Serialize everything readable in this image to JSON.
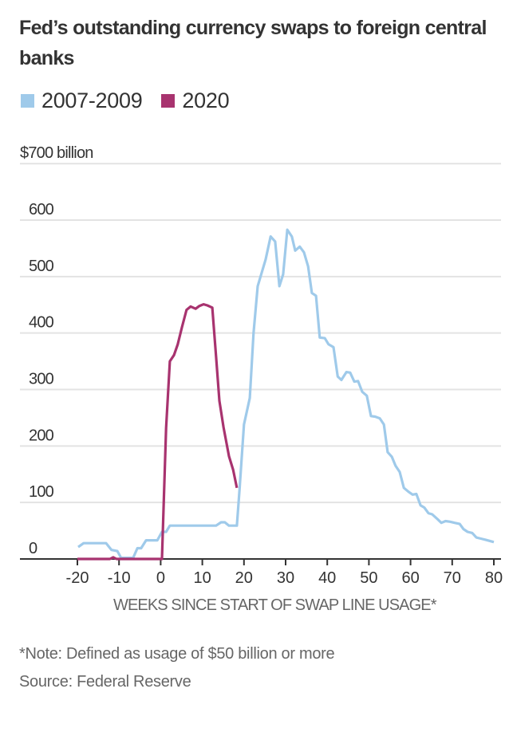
{
  "chart_data": {
    "type": "line",
    "title": "Fed’s outstanding currency swaps to foreign central banks",
    "ylabel": "$700 billion",
    "xlabel": "WEEKS SINCE START OF SWAP LINE USAGE*",
    "xlim": [
      -20,
      80
    ],
    "ylim": [
      0,
      700
    ],
    "xticks": [
      -20,
      -10,
      0,
      10,
      20,
      30,
      40,
      50,
      60,
      70,
      80
    ],
    "yticks": [
      0,
      100,
      200,
      300,
      400,
      500,
      600,
      700
    ],
    "ytick_labels": [
      "0",
      "100",
      "200",
      "300",
      "400",
      "500",
      "600",
      "$700 billion"
    ],
    "grid": true,
    "legend_position": "top-left",
    "series": [
      {
        "name": "2007-2009",
        "color": "#9fcaea",
        "points": [
          [
            -19.8,
            21
          ],
          [
            -18.5,
            28
          ],
          [
            -13.1,
            28
          ],
          [
            -11.8,
            16
          ],
          [
            -10.4,
            14
          ],
          [
            -9.5,
            2
          ],
          [
            -6.6,
            2
          ],
          [
            -5.6,
            19
          ],
          [
            -4.7,
            19
          ],
          [
            -3.5,
            33
          ],
          [
            -0.8,
            33
          ],
          [
            0.3,
            48
          ],
          [
            1.3,
            48
          ],
          [
            2.2,
            59
          ],
          [
            13.3,
            59
          ],
          [
            14.5,
            65
          ],
          [
            15.4,
            65
          ],
          [
            16.4,
            59
          ],
          [
            18.3,
            59
          ],
          [
            18.9,
            120
          ],
          [
            20,
            238
          ],
          [
            21.4,
            285
          ],
          [
            22.3,
            400
          ],
          [
            23.3,
            483
          ],
          [
            25.2,
            530
          ],
          [
            26.4,
            571
          ],
          [
            27.5,
            562
          ],
          [
            28.5,
            483
          ],
          [
            29.4,
            504
          ],
          [
            30.4,
            583
          ],
          [
            31.5,
            571
          ],
          [
            32.3,
            546
          ],
          [
            33.4,
            553
          ],
          [
            34.4,
            543
          ],
          [
            35.4,
            518
          ],
          [
            36.3,
            471
          ],
          [
            37.3,
            466
          ],
          [
            38.2,
            392
          ],
          [
            39.4,
            391
          ],
          [
            40.3,
            380
          ],
          [
            41.5,
            375
          ],
          [
            42.5,
            323
          ],
          [
            43.4,
            317
          ],
          [
            44.6,
            331
          ],
          [
            45.5,
            330
          ],
          [
            46.5,
            314
          ],
          [
            47.4,
            315
          ],
          [
            48.4,
            296
          ],
          [
            49.5,
            289
          ],
          [
            50.5,
            253
          ],
          [
            51.5,
            252
          ],
          [
            52.6,
            249
          ],
          [
            53.6,
            238
          ],
          [
            54.5,
            189
          ],
          [
            55.5,
            181
          ],
          [
            56.4,
            165
          ],
          [
            57.4,
            154
          ],
          [
            58.4,
            126
          ],
          [
            59.5,
            119
          ],
          [
            60.5,
            114
          ],
          [
            61.4,
            115
          ],
          [
            62.4,
            95
          ],
          [
            63.3,
            91
          ],
          [
            64.3,
            81
          ],
          [
            65.2,
            79
          ],
          [
            66.4,
            71
          ],
          [
            67.4,
            64
          ],
          [
            68.4,
            67
          ],
          [
            69.5,
            66
          ],
          [
            70.6,
            64
          ],
          [
            71.8,
            62
          ],
          [
            72.7,
            53
          ],
          [
            73.7,
            48
          ],
          [
            74.8,
            46
          ],
          [
            75.8,
            38
          ],
          [
            76.9,
            36
          ],
          [
            78,
            34
          ],
          [
            80,
            30
          ]
        ]
      },
      {
        "name": "2020",
        "color": "#a8336f",
        "points": [
          [
            -20,
            0
          ],
          [
            -12.2,
            0
          ],
          [
            -11.4,
            3
          ],
          [
            -10.6,
            0
          ],
          [
            0.3,
            0
          ],
          [
            1.3,
            232
          ],
          [
            2.2,
            350
          ],
          [
            3.2,
            361
          ],
          [
            4.1,
            380
          ],
          [
            5.1,
            410
          ],
          [
            6.2,
            441
          ],
          [
            7.2,
            447
          ],
          [
            8.4,
            443
          ],
          [
            9.3,
            448
          ],
          [
            10.3,
            451
          ],
          [
            11.2,
            449
          ],
          [
            12.4,
            445
          ],
          [
            13.3,
            359
          ],
          [
            14.1,
            280
          ],
          [
            15.1,
            233
          ],
          [
            16.4,
            182
          ],
          [
            17.4,
            158
          ],
          [
            18.3,
            126
          ]
        ]
      }
    ],
    "note": "*Note: Defined as usage of $50 billion or more",
    "source": "Source: Federal Reserve"
  }
}
